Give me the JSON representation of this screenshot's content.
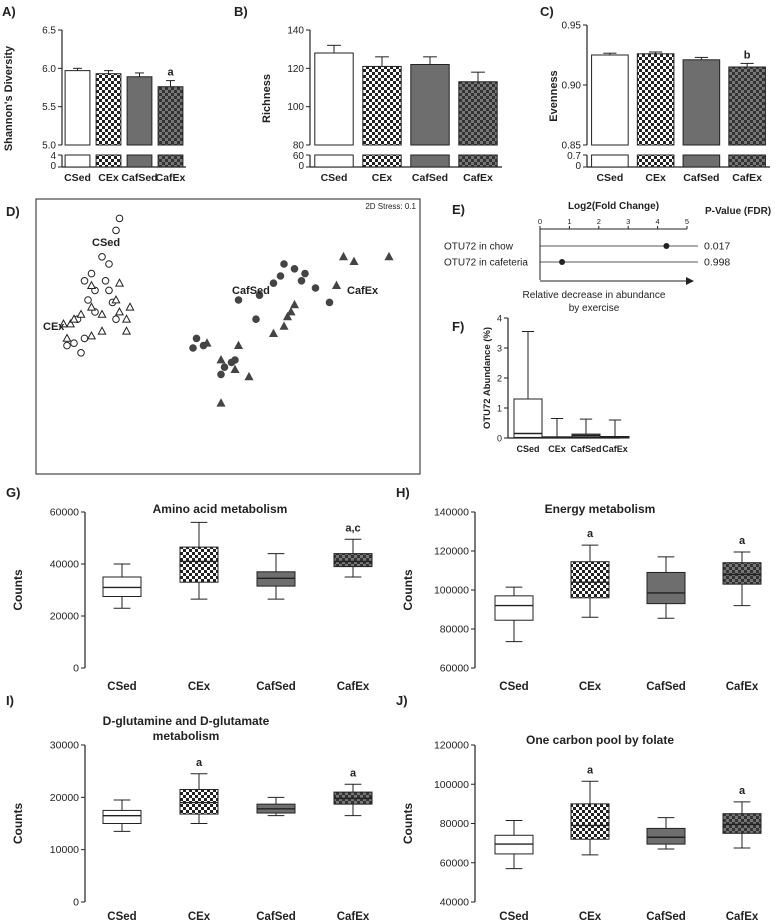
{
  "colors": {
    "ink": "#222222",
    "grey": "#6e6e6e",
    "dark": "#3c3c3c",
    "white": "#ffffff"
  },
  "chart_data": [
    {
      "id": "A",
      "panel_label": "A)",
      "type": "bar",
      "title": "",
      "xlabel": "",
      "ylabel": "Shannon's Diversity",
      "categories": [
        "CSed",
        "CEx",
        "CafSed",
        "CafEx"
      ],
      "values": [
        5.97,
        5.93,
        5.89,
        5.76
      ],
      "errors": [
        0.03,
        0.04,
        0.05,
        0.08
      ],
      "ylim": [
        5.0,
        6.5
      ],
      "yticks": [
        "5.0",
        "5.5",
        "6.0",
        "6.5"
      ],
      "broken_axis_ticks": [
        "0",
        "4"
      ],
      "annotations": [
        "",
        "",
        "",
        "a"
      ],
      "styles": [
        "white",
        "check",
        "grey",
        "dark-check"
      ]
    },
    {
      "id": "B",
      "panel_label": "B)",
      "type": "bar",
      "title": "",
      "xlabel": "",
      "ylabel": "Richness",
      "categories": [
        "CSed",
        "CEx",
        "CafSed",
        "CafEx"
      ],
      "values": [
        128,
        121,
        122,
        113
      ],
      "errors": [
        4,
        5,
        4,
        5
      ],
      "ylim": [
        80,
        140
      ],
      "yticks": [
        "80",
        "100",
        "120",
        "140"
      ],
      "broken_axis_ticks": [
        "0",
        "60"
      ],
      "annotations": [
        "",
        "",
        "",
        ""
      ],
      "styles": [
        "white",
        "check",
        "grey",
        "dark-check"
      ]
    },
    {
      "id": "C",
      "panel_label": "C)",
      "type": "bar",
      "title": "",
      "xlabel": "",
      "ylabel": "Evenness",
      "categories": [
        "CSed",
        "CEx",
        "CafSed",
        "CafEx"
      ],
      "values": [
        0.925,
        0.926,
        0.921,
        0.915
      ],
      "errors": [
        0.0015,
        0.0015,
        0.002,
        0.003
      ],
      "ylim": [
        0.85,
        0.95
      ],
      "yticks": [
        "0.85",
        "0.90",
        "0.95"
      ],
      "broken_axis_ticks": [
        "0",
        "0.7"
      ],
      "annotations": [
        "",
        "",
        "",
        "b"
      ],
      "styles": [
        "white",
        "check",
        "grey",
        "dark-check"
      ]
    },
    {
      "id": "D",
      "panel_label": "D)",
      "type": "scatter",
      "title": "",
      "xlabel": "",
      "ylabel": "",
      "stress_label": "2D Stress: 0.1",
      "group_labels": [
        "CSed",
        "CEx",
        "CafSed",
        "CafEx"
      ],
      "xlim": [
        0,
        100
      ],
      "ylim": [
        0,
        100
      ],
      "series": [
        {
          "name": "CSed",
          "marker": "open-circle",
          "points": [
            [
              27,
              79
            ],
            [
              26,
              74
            ],
            [
              22,
              63
            ],
            [
              24,
              60
            ],
            [
              19,
              56
            ],
            [
              17,
              53
            ],
            [
              20,
              49
            ],
            [
              24,
              49
            ],
            [
              25,
              44
            ],
            [
              18,
              45
            ],
            [
              15,
              37
            ],
            [
              26,
              37
            ],
            [
              17,
              29
            ],
            [
              14,
              27
            ],
            [
              16,
              23
            ],
            [
              12,
              26
            ],
            [
              20,
              40
            ],
            [
              23,
              53
            ]
          ]
        },
        {
          "name": "CEx",
          "marker": "open-triangle",
          "points": [
            [
              11,
              35
            ],
            [
              13,
              35
            ],
            [
              19,
              51
            ],
            [
              27,
              52
            ],
            [
              19,
              42
            ],
            [
              22,
              39
            ],
            [
              29,
              37
            ],
            [
              27,
              40
            ],
            [
              30,
              42
            ],
            [
              26,
              45
            ],
            [
              29,
              32
            ],
            [
              19,
              30
            ],
            [
              12,
              29
            ],
            [
              22,
              32
            ],
            [
              16,
              39
            ],
            [
              14,
              37
            ]
          ]
        },
        {
          "name": "CafSed",
          "marker": "filled-circle",
          "points": [
            [
              49,
              29
            ],
            [
              48,
              25
            ],
            [
              51,
              26
            ],
            [
              66,
              37
            ],
            [
              61,
              45
            ],
            [
              67,
              47
            ],
            [
              73,
              55
            ],
            [
              71,
              52
            ],
            [
              74,
              60
            ],
            [
              77,
              58
            ],
            [
              80,
              56
            ],
            [
              79,
              53
            ],
            [
              83,
              50
            ],
            [
              87,
              44
            ],
            [
              60,
              20
            ],
            [
              56,
              14
            ],
            [
              57,
              17
            ],
            [
              59,
              19
            ]
          ]
        },
        {
          "name": "CafEx",
          "marker": "filled-triangle",
          "points": [
            [
              52,
              27
            ],
            [
              56,
              20
            ],
            [
              71,
              31
            ],
            [
              75,
              38
            ],
            [
              76,
              40
            ],
            [
              77,
              43
            ],
            [
              89,
              51
            ],
            [
              91,
              63
            ],
            [
              94,
              61
            ],
            [
              104,
              63
            ],
            [
              60,
              16
            ],
            [
              64,
              13
            ],
            [
              61,
              26
            ],
            [
              56,
              2
            ],
            [
              74,
              34
            ]
          ]
        }
      ]
    },
    {
      "id": "E",
      "panel_label": "E)",
      "type": "dot",
      "title": "",
      "xlabel": "Log2(Fold Change)",
      "ylabel": "",
      "right_header": "P-Value (FDR)",
      "xlim": [
        0,
        5
      ],
      "xticks": [
        "0",
        "1",
        "2",
        "3",
        "4",
        "5"
      ],
      "categories": [
        "OTU72 in chow",
        "OTU72 in cafeteria"
      ],
      "values": [
        4.3,
        0.75
      ],
      "pvalues": [
        "0.017",
        "0.998"
      ],
      "arrow_caption": [
        "Relative decrease in abundance",
        "by exercise"
      ]
    },
    {
      "id": "F",
      "panel_label": "F)",
      "type": "box",
      "title": "",
      "xlabel": "",
      "ylabel": "OTU72 Abundance (%)",
      "categories": [
        "CSed",
        "CEx",
        "CafSed",
        "CafEx"
      ],
      "ylim": [
        0,
        4
      ],
      "yticks": [
        "0",
        "1",
        "2",
        "3",
        "4"
      ],
      "boxes": [
        {
          "min": 0,
          "q1": 0.02,
          "median": 0.15,
          "q3": 1.3,
          "max": 3.55
        },
        {
          "min": 0,
          "q1": 0,
          "median": 0.02,
          "q3": 0.04,
          "max": 0.65
        },
        {
          "min": 0,
          "q1": 0.02,
          "median": 0.08,
          "q3": 0.13,
          "max": 0.63
        },
        {
          "min": 0,
          "q1": 0,
          "median": 0.03,
          "q3": 0.05,
          "max": 0.6
        }
      ],
      "styles": [
        "white",
        "check",
        "grey",
        "dark-check"
      ],
      "annotations": [
        "",
        "",
        "",
        ""
      ]
    },
    {
      "id": "G",
      "panel_label": "G)",
      "type": "box",
      "title": "Amino acid metabolism",
      "xlabel": "",
      "ylabel": "Counts",
      "categories": [
        "CSed",
        "CEx",
        "CafSed",
        "CafEx"
      ],
      "ylim": [
        0,
        60000
      ],
      "yticks": [
        "0",
        "20000",
        "40000",
        "60000"
      ],
      "boxes": [
        {
          "min": 23000,
          "q1": 27500,
          "median": 31000,
          "q3": 35000,
          "max": 40000
        },
        {
          "min": 26500,
          "q1": 33000,
          "median": 41000,
          "q3": 46500,
          "max": 56000
        },
        {
          "min": 26500,
          "q1": 31500,
          "median": 34500,
          "q3": 37000,
          "max": 44000
        },
        {
          "min": 35000,
          "q1": 39000,
          "median": 41000,
          "q3": 44000,
          "max": 49500
        }
      ],
      "styles": [
        "white",
        "check",
        "grey",
        "dark-check"
      ],
      "annotations": [
        "",
        "",
        "",
        "a,c"
      ]
    },
    {
      "id": "H",
      "panel_label": "H)",
      "type": "box",
      "title": "Energy metabolism",
      "xlabel": "",
      "ylabel": "Counts",
      "categories": [
        "CSed",
        "CEx",
        "CafSed",
        "CafEx"
      ],
      "ylim": [
        60000,
        140000
      ],
      "yticks": [
        "60000",
        "80000",
        "100000",
        "120000",
        "140000"
      ],
      "boxes": [
        {
          "min": 73500,
          "q1": 84500,
          "median": 92000,
          "q3": 97000,
          "max": 101500
        },
        {
          "min": 86000,
          "q1": 96000,
          "median": 104000,
          "q3": 114500,
          "max": 123000
        },
        {
          "min": 85500,
          "q1": 93000,
          "median": 98500,
          "q3": 109000,
          "max": 117000
        },
        {
          "min": 92000,
          "q1": 103000,
          "median": 108000,
          "q3": 114000,
          "max": 119500
        }
      ],
      "styles": [
        "white",
        "check",
        "grey",
        "dark-check"
      ],
      "annotations": [
        "",
        "a",
        "",
        "a"
      ]
    },
    {
      "id": "I",
      "panel_label": "I)",
      "type": "box",
      "title": "D-glutamine and D-glutamate metabolism",
      "xlabel": "",
      "ylabel": "Counts",
      "title_lines": [
        "D-glutamine and D-glutamate",
        "metabolism"
      ],
      "categories": [
        "CSed",
        "CEx",
        "CafSed",
        "CafEx"
      ],
      "ylim": [
        0,
        30000
      ],
      "yticks": [
        "0",
        "10000",
        "20000",
        "30000"
      ],
      "boxes": [
        {
          "min": 13500,
          "q1": 15000,
          "median": 16500,
          "q3": 17500,
          "max": 19500
        },
        {
          "min": 15000,
          "q1": 16800,
          "median": 19000,
          "q3": 21500,
          "max": 24500
        },
        {
          "min": 16500,
          "q1": 17000,
          "median": 17800,
          "q3": 18700,
          "max": 20000
        },
        {
          "min": 16500,
          "q1": 18700,
          "median": 19800,
          "q3": 21000,
          "max": 22500
        }
      ],
      "styles": [
        "white",
        "check",
        "grey",
        "dark-check"
      ],
      "annotations": [
        "",
        "a",
        "",
        "a"
      ]
    },
    {
      "id": "J",
      "panel_label": "J)",
      "type": "box",
      "title": "One carbon pool by folate",
      "xlabel": "",
      "ylabel": "Counts",
      "categories": [
        "CSed",
        "CEx",
        "CafSed",
        "CafEx"
      ],
      "ylim": [
        40000,
        120000
      ],
      "yticks": [
        "40000",
        "60000",
        "80000",
        "100000",
        "120000"
      ],
      "boxes": [
        {
          "min": 57000,
          "q1": 64500,
          "median": 69500,
          "q3": 74000,
          "max": 81500
        },
        {
          "min": 64000,
          "q1": 72000,
          "median": 79000,
          "q3": 90000,
          "max": 101500
        },
        {
          "min": 67000,
          "q1": 69500,
          "median": 73000,
          "q3": 77500,
          "max": 83000
        },
        {
          "min": 67500,
          "q1": 75000,
          "median": 79500,
          "q3": 85000,
          "max": 91000
        }
      ],
      "styles": [
        "white",
        "check",
        "grey",
        "dark-check"
      ],
      "annotations": [
        "",
        "a",
        "",
        "a"
      ]
    }
  ]
}
